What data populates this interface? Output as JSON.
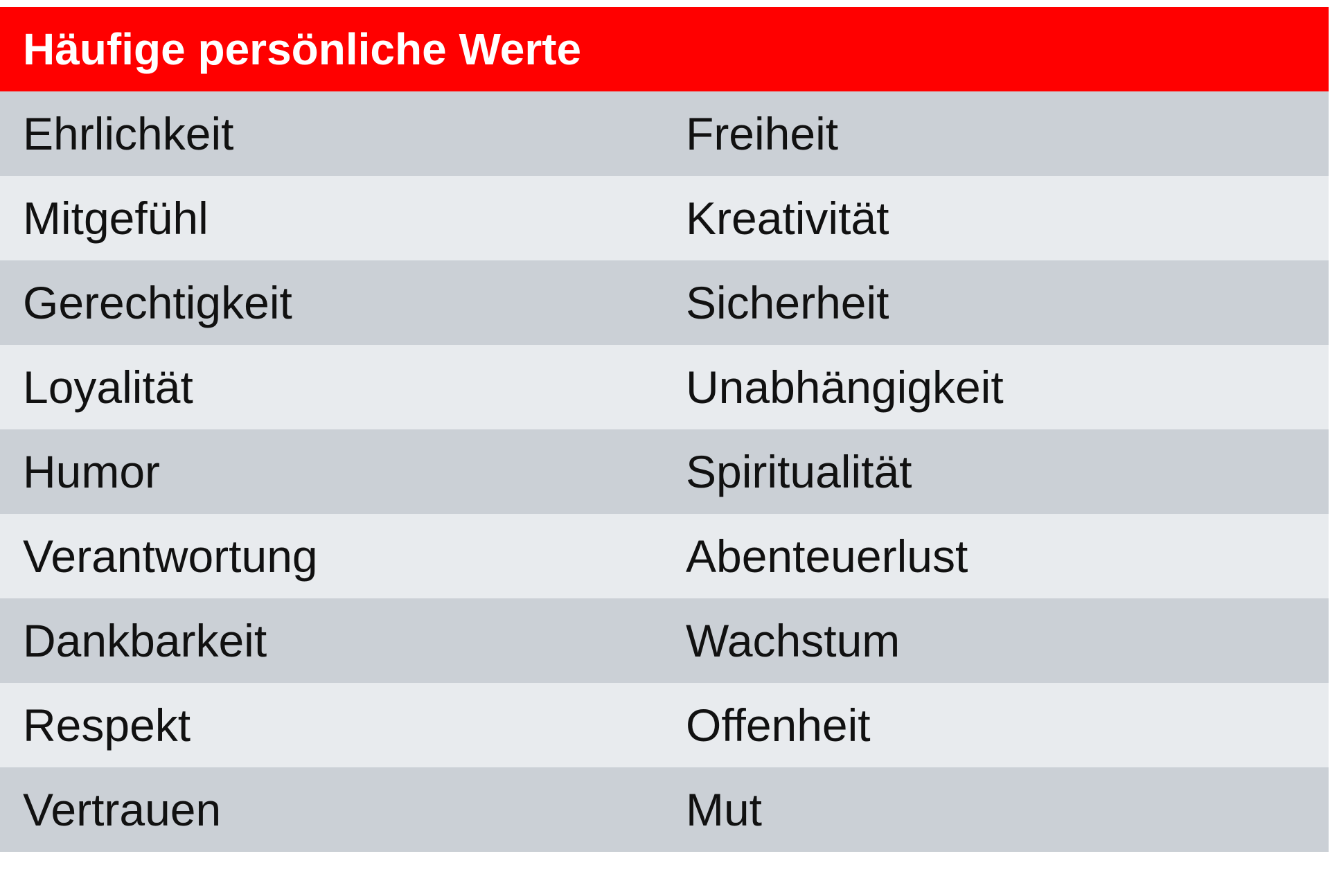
{
  "table": {
    "title": "Häufige persönliche Werte",
    "colors": {
      "header": "#ff0000",
      "row_dark": "#cbd0d6",
      "row_light": "#e8ebee"
    },
    "rows": [
      {
        "left": "Ehrlichkeit",
        "right": "Freiheit"
      },
      {
        "left": "Mitgefühl",
        "right": "Kreativität"
      },
      {
        "left": "Gerechtigkeit",
        "right": "Sicherheit"
      },
      {
        "left": "Loyalität",
        "right": "Unabhängigkeit"
      },
      {
        "left": "Humor",
        "right": "Spiritualität"
      },
      {
        "left": "Verantwortung",
        "right": "Abenteuerlust"
      },
      {
        "left": "Dankbarkeit",
        "right": "Wachstum"
      },
      {
        "left": "Respekt",
        "right": "Offenheit"
      },
      {
        "left": "Vertrauen",
        "right": "Mut"
      }
    ]
  }
}
